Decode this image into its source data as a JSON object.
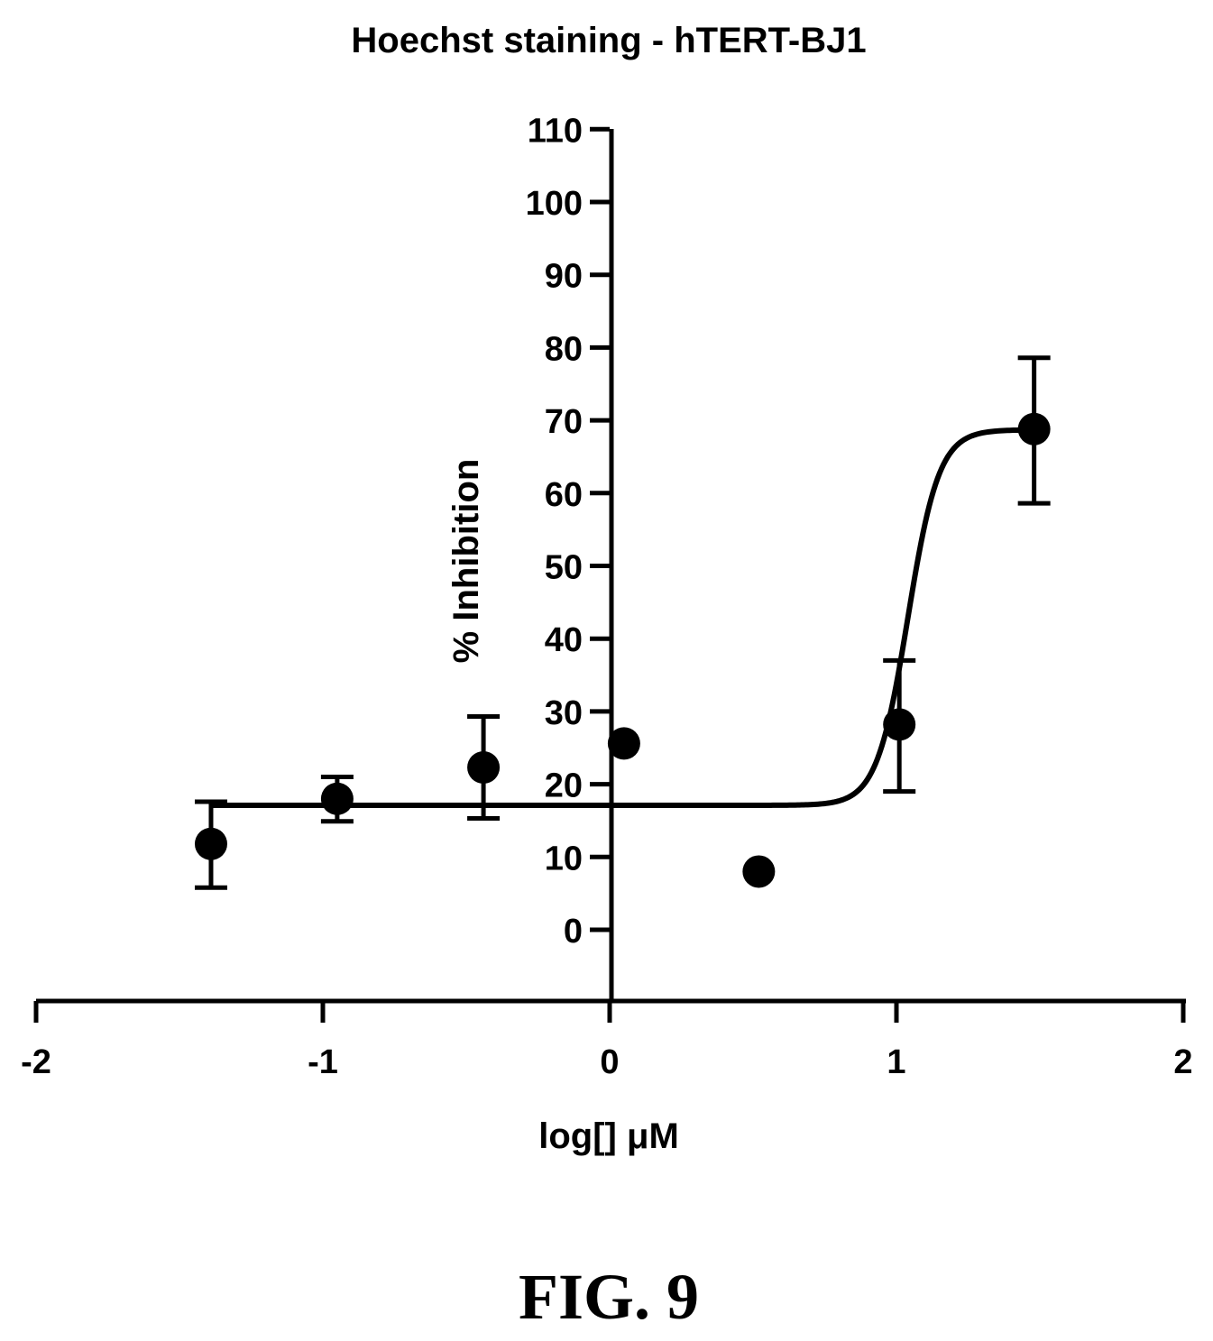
{
  "chart_data": {
    "type": "scatter",
    "title": "Hoechst staining - hTERT-BJ1",
    "xlabel": "log[] μM",
    "ylabel": "% Inhibition",
    "xlim": [
      -2,
      2
    ],
    "ylim": [
      -10,
      110
    ],
    "x_ticks": [
      "-2",
      "-1",
      "0",
      "1",
      "2"
    ],
    "y_ticks": [
      "0",
      "10",
      "20",
      "30",
      "40",
      "50",
      "60",
      "70",
      "80",
      "90",
      "100",
      "110"
    ],
    "points": [
      {
        "x": -1.39,
        "y": 11.8,
        "err_low": 5.8,
        "err_high": 17.6
      },
      {
        "x": -0.95,
        "y": 18.0,
        "err_low": 14.9,
        "err_high": 21.0
      },
      {
        "x": -0.44,
        "y": 22.3,
        "err_low": 15.3,
        "err_high": 29.3
      },
      {
        "x": 0.05,
        "y": 25.6
      },
      {
        "x": 0.52,
        "y": 8.0
      },
      {
        "x": 1.01,
        "y": 28.2,
        "err_low": 19.0,
        "err_high": 37.0
      },
      {
        "x": 1.48,
        "y": 68.8,
        "err_low": 58.6,
        "err_high": 78.6
      }
    ],
    "fit_curve": {
      "model": "sigmoidal dose-response",
      "bottom": 17.1,
      "top": 68.7,
      "logEC50": 1.04,
      "hill": 8
    }
  },
  "figure_label": "FIG. 9"
}
